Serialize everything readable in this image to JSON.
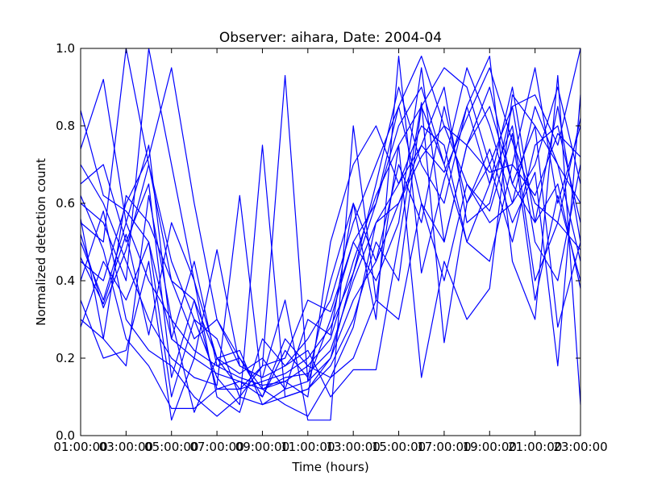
{
  "chart_data": {
    "type": "line",
    "title": "Observer: aihara, Date: 2004-04",
    "xlabel": "Time (hours)",
    "ylabel": "Normalized detection count",
    "xlim": [
      1,
      23
    ],
    "ylim": [
      0.0,
      1.0
    ],
    "x_ticks": [
      1,
      3,
      5,
      7,
      9,
      11,
      13,
      15,
      17,
      19,
      21,
      23
    ],
    "x_tick_labels": [
      "01:00:00",
      "03:00:00",
      "05:00:00",
      "07:00:00",
      "09:00:00",
      "11:00:00",
      "13:00:00",
      "15:00:00",
      "17:00:00",
      "19:00:00",
      "21:00:00",
      "23:00:00"
    ],
    "y_ticks": [
      0.0,
      0.2,
      0.4,
      0.6,
      0.8,
      1.0
    ],
    "y_tick_labels": [
      "0.0",
      "0.2",
      "0.4",
      "0.6",
      "0.8",
      "1.0"
    ],
    "grid": false,
    "series_color": "#0000ff",
    "x": [
      1,
      2,
      3,
      4,
      5,
      6,
      7,
      8,
      9,
      10,
      11,
      12,
      13,
      14,
      15,
      16,
      17,
      18,
      19,
      20,
      21,
      22,
      23
    ],
    "series": [
      {
        "values": [
          0.84,
          0.62,
          0.58,
          0.5,
          0.25,
          0.2,
          0.16,
          0.14,
          0.12,
          0.15,
          0.16,
          0.22,
          0.4,
          0.55,
          0.6,
          0.72,
          0.8,
          0.75,
          0.68,
          0.7,
          0.62,
          0.78,
          0.72
        ]
      },
      {
        "values": [
          0.74,
          0.92,
          0.55,
          0.4,
          0.3,
          0.22,
          0.18,
          0.15,
          0.13,
          0.14,
          0.18,
          0.25,
          0.45,
          0.62,
          0.75,
          0.85,
          0.95,
          0.9,
          0.7,
          0.85,
          0.88,
          0.75,
          1.0
        ]
      },
      {
        "values": [
          0.3,
          0.25,
          0.62,
          0.55,
          0.4,
          0.35,
          0.2,
          0.16,
          0.2,
          0.12,
          0.14,
          0.3,
          0.5,
          0.6,
          0.85,
          0.98,
          0.8,
          0.65,
          0.55,
          0.6,
          0.7,
          0.9,
          0.65
        ]
      },
      {
        "values": [
          0.55,
          0.5,
          1.0,
          0.7,
          0.45,
          0.3,
          0.25,
          0.1,
          0.08,
          0.1,
          0.12,
          0.2,
          0.35,
          0.45,
          0.6,
          0.75,
          0.68,
          0.82,
          0.95,
          0.76,
          0.6,
          0.55,
          0.48
        ]
      },
      {
        "values": [
          0.45,
          0.4,
          0.6,
          0.72,
          0.95,
          0.6,
          0.3,
          0.18,
          0.15,
          0.18,
          0.25,
          0.35,
          0.55,
          0.7,
          0.85,
          0.6,
          0.5,
          0.75,
          0.85,
          0.65,
          0.8,
          0.7,
          0.6
        ]
      },
      {
        "values": [
          0.6,
          0.55,
          0.4,
          1.0,
          0.7,
          0.4,
          0.2,
          0.12,
          0.14,
          0.16,
          0.2,
          0.28,
          0.42,
          0.6,
          0.8,
          0.9,
          0.7,
          0.5,
          0.65,
          0.8,
          0.4,
          0.55,
          0.82
        ]
      },
      {
        "values": [
          0.5,
          0.35,
          0.55,
          0.75,
          0.25,
          0.45,
          0.18,
          0.2,
          0.1,
          0.22,
          0.15,
          0.4,
          0.6,
          0.45,
          0.7,
          0.55,
          0.85,
          0.6,
          0.7,
          0.5,
          0.75,
          0.8,
          0.55
        ]
      },
      {
        "values": [
          0.7,
          0.6,
          0.45,
          0.3,
          0.2,
          0.15,
          0.13,
          0.62,
          0.12,
          0.14,
          0.1,
          0.5,
          0.7,
          0.8,
          0.65,
          0.75,
          0.9,
          0.55,
          0.6,
          0.85,
          0.5,
          0.4,
          0.7
        ]
      },
      {
        "values": [
          0.28,
          0.45,
          0.35,
          0.5,
          0.1,
          0.3,
          0.15,
          0.08,
          0.75,
          0.1,
          0.12,
          0.18,
          0.3,
          0.5,
          0.4,
          0.85,
          0.7,
          0.95,
          0.8,
          0.6,
          0.85,
          0.7,
          0.45
        ]
      },
      {
        "values": [
          0.65,
          0.7,
          0.5,
          0.65,
          0.15,
          0.35,
          0.12,
          0.12,
          0.18,
          0.93,
          0.14,
          0.2,
          0.42,
          0.65,
          0.9,
          0.7,
          0.6,
          0.85,
          0.65,
          0.9,
          0.55,
          0.65,
          0.38
        ]
      },
      {
        "values": [
          0.52,
          0.33,
          0.48,
          0.7,
          0.4,
          0.25,
          0.3,
          0.2,
          0.12,
          0.08,
          0.05,
          0.15,
          0.28,
          0.55,
          0.65,
          0.8,
          0.75,
          0.5,
          0.45,
          0.7,
          0.95,
          0.6,
          0.8
        ]
      },
      {
        "values": [
          0.4,
          0.58,
          0.3,
          0.22,
          0.18,
          0.1,
          0.05,
          0.1,
          0.18,
          0.2,
          0.35,
          0.32,
          0.5,
          0.4,
          0.55,
          0.95,
          0.5,
          0.75,
          0.9,
          0.65,
          0.55,
          0.85,
          0.5
        ]
      },
      {
        "values": [
          0.62,
          0.48,
          0.25,
          0.18,
          0.07,
          0.07,
          0.12,
          0.14,
          0.1,
          0.25,
          0.18,
          0.15,
          0.2,
          0.35,
          0.3,
          0.6,
          0.4,
          0.65,
          0.58,
          0.78,
          0.35,
          0.62,
          0.4
        ]
      },
      {
        "values": [
          0.35,
          0.2,
          0.22,
          0.45,
          0.04,
          0.2,
          0.48,
          0.18,
          0.15,
          0.35,
          0.04,
          0.04,
          0.8,
          0.35,
          0.75,
          0.15,
          0.45,
          0.3,
          0.38,
          0.88,
          0.8,
          0.28,
          0.5
        ]
      },
      {
        "values": [
          0.56,
          0.25,
          0.18,
          0.62,
          0.3,
          0.06,
          0.2,
          0.22,
          0.08,
          0.12,
          0.3,
          0.26,
          0.6,
          0.3,
          0.98,
          0.42,
          0.66,
          0.85,
          0.98,
          0.45,
          0.3,
          0.93,
          0.08
        ]
      },
      {
        "values": [
          0.46,
          0.34,
          0.52,
          0.26,
          0.55,
          0.4,
          0.1,
          0.06,
          0.25,
          0.18,
          0.22,
          0.1,
          0.17,
          0.17,
          0.5,
          0.86,
          0.24,
          0.6,
          0.74,
          0.55,
          0.68,
          0.18,
          0.88
        ]
      }
    ]
  }
}
